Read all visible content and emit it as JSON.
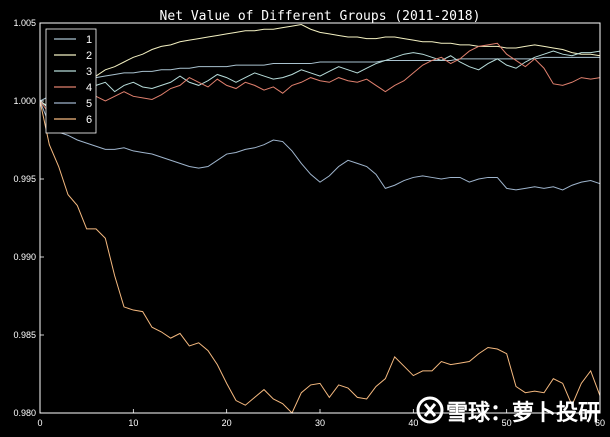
{
  "chart_data": {
    "type": "line",
    "title": "Net Value of Different Groups (2011-2018)",
    "xlabel": "",
    "ylabel": "",
    "xlim": [
      0,
      60
    ],
    "ylim": [
      0.98,
      1.005
    ],
    "x_ticks": [
      0,
      10,
      20,
      30,
      40,
      50,
      60
    ],
    "x_tick_labels": [
      "0",
      "10",
      "20",
      "30",
      "40",
      "50",
      "60"
    ],
    "y_ticks": [
      0.98,
      0.985,
      0.99,
      0.995,
      1.0,
      1.005
    ],
    "y_tick_labels": [
      "0.980",
      "0.985",
      "0.990",
      "0.995",
      "1.000",
      "1.005"
    ],
    "grid": false,
    "legend_position": "top-left",
    "background": "#000000",
    "series": [
      {
        "name": "1",
        "color": "#a9c2cf",
        "values": [
          1.0,
          1.0003,
          1.0006,
          1.0009,
          1.0011,
          1.0013,
          1.0015,
          1.0016,
          1.0017,
          1.0018,
          1.0018,
          1.0019,
          1.0019,
          1.002,
          1.002,
          1.0021,
          1.0021,
          1.0022,
          1.0022,
          1.0022,
          1.0022,
          1.0023,
          1.0023,
          1.0023,
          1.0023,
          1.0024,
          1.0024,
          1.0024,
          1.0024,
          1.0024,
          1.0025,
          1.0025,
          1.0025,
          1.0025,
          1.0025,
          1.0025,
          1.0025,
          1.0026,
          1.0026,
          1.0026,
          1.0026,
          1.0026,
          1.0026,
          1.0026,
          1.0026,
          1.0027,
          1.0027,
          1.0027,
          1.0027,
          1.0027,
          1.0027,
          1.0027,
          1.0027,
          1.0027,
          1.0028,
          1.0028,
          1.0028,
          1.0028,
          1.0028,
          1.0028,
          1.0028
        ]
      },
      {
        "name": "2",
        "color": "#f4f1c2",
        "values": [
          1.0,
          0.9996,
          1.0,
          1.0005,
          1.0009,
          1.0012,
          1.0016,
          1.002,
          1.0022,
          1.0025,
          1.0028,
          1.003,
          1.0033,
          1.0035,
          1.0036,
          1.0038,
          1.0039,
          1.004,
          1.0041,
          1.0042,
          1.0043,
          1.0044,
          1.0045,
          1.0045,
          1.0046,
          1.0046,
          1.0047,
          1.0048,
          1.0049,
          1.0046,
          1.0044,
          1.0043,
          1.0042,
          1.0041,
          1.0041,
          1.004,
          1.004,
          1.0041,
          1.0041,
          1.004,
          1.0039,
          1.0038,
          1.0038,
          1.0037,
          1.0037,
          1.0036,
          1.0036,
          1.0035,
          1.0035,
          1.0035,
          1.0034,
          1.0034,
          1.0035,
          1.0036,
          1.0035,
          1.0034,
          1.0033,
          1.0031,
          1.003,
          1.003,
          1.0029
        ]
      },
      {
        "name": "3",
        "color": "#b7dcda",
        "values": [
          1.0,
          0.9995,
          0.9998,
          1.0002,
          1.0006,
          1.0008,
          1.001,
          1.0012,
          1.0006,
          1.001,
          1.0012,
          1.0009,
          1.0008,
          1.001,
          1.0012,
          1.0016,
          1.0012,
          1.001,
          1.0013,
          1.0017,
          1.0015,
          1.0012,
          1.0015,
          1.0018,
          1.0016,
          1.0014,
          1.0015,
          1.0017,
          1.002,
          1.0018,
          1.0016,
          1.0019,
          1.0022,
          1.002,
          1.0018,
          1.0021,
          1.0024,
          1.0026,
          1.0028,
          1.003,
          1.0031,
          1.003,
          1.0028,
          1.0026,
          1.0029,
          1.0025,
          1.0022,
          1.002,
          1.0024,
          1.0027,
          1.0023,
          1.0021,
          1.0025,
          1.0028,
          1.003,
          1.0032,
          1.003,
          1.0029,
          1.0031,
          1.0031,
          1.0032
        ]
      },
      {
        "name": "4",
        "color": "#e0806e",
        "values": [
          1.0,
          0.9992,
          0.9998,
          1.0002,
          1.0004,
          1.0006,
          1.0003,
          1.0,
          1.0003,
          1.0006,
          1.0003,
          1.0002,
          1.0001,
          1.0004,
          1.0008,
          1.001,
          1.0015,
          1.0012,
          1.0009,
          1.0014,
          1.001,
          1.0008,
          1.0012,
          1.001,
          1.0007,
          1.0009,
          1.0005,
          1.001,
          1.0012,
          1.0015,
          1.0013,
          1.0012,
          1.0015,
          1.0013,
          1.0012,
          1.0014,
          1.001,
          1.0006,
          1.001,
          1.0013,
          1.0018,
          1.0023,
          1.0026,
          1.0028,
          1.0024,
          1.0027,
          1.0032,
          1.0035,
          1.0036,
          1.0037,
          1.003,
          1.0026,
          1.0022,
          1.0027,
          1.0021,
          1.0011,
          1.001,
          1.0012,
          1.0015,
          1.0014,
          1.0015
        ]
      },
      {
        "name": "5",
        "color": "#9fb5cd",
        "values": [
          1.0,
          0.9985,
          0.998,
          0.9978,
          0.9975,
          0.9973,
          0.9971,
          0.9969,
          0.9969,
          0.997,
          0.9968,
          0.9967,
          0.9966,
          0.9964,
          0.9962,
          0.996,
          0.9958,
          0.9957,
          0.9958,
          0.9962,
          0.9966,
          0.9967,
          0.9969,
          0.997,
          0.9972,
          0.9975,
          0.9974,
          0.9968,
          0.996,
          0.9953,
          0.9948,
          0.9952,
          0.9958,
          0.9962,
          0.996,
          0.9958,
          0.9953,
          0.9944,
          0.9946,
          0.9949,
          0.9951,
          0.9952,
          0.9951,
          0.995,
          0.9951,
          0.9951,
          0.9948,
          0.995,
          0.9951,
          0.9951,
          0.9944,
          0.9943,
          0.9944,
          0.9945,
          0.9944,
          0.9945,
          0.9943,
          0.9946,
          0.9948,
          0.9949,
          0.9947
        ]
      },
      {
        "name": "6",
        "color": "#f5b97f",
        "values": [
          1.0,
          0.9972,
          0.9958,
          0.994,
          0.9933,
          0.9918,
          0.9918,
          0.9912,
          0.9888,
          0.9868,
          0.9866,
          0.9865,
          0.9855,
          0.9852,
          0.9848,
          0.9851,
          0.9843,
          0.9845,
          0.984,
          0.9831,
          0.9819,
          0.9808,
          0.9805,
          0.981,
          0.9815,
          0.9809,
          0.9806,
          0.98,
          0.9813,
          0.9818,
          0.9819,
          0.981,
          0.9818,
          0.9816,
          0.981,
          0.9809,
          0.9817,
          0.9822,
          0.9836,
          0.983,
          0.9824,
          0.9827,
          0.9827,
          0.9833,
          0.9831,
          0.9832,
          0.9833,
          0.9838,
          0.9842,
          0.9841,
          0.9838,
          0.9817,
          0.9813,
          0.9814,
          0.9813,
          0.9822,
          0.9819,
          0.9805,
          0.9819,
          0.9827,
          0.9811
        ]
      }
    ]
  },
  "watermark": {
    "logo_icon": "snowball-logo-icon",
    "text": "雪球：萝卜投研"
  }
}
